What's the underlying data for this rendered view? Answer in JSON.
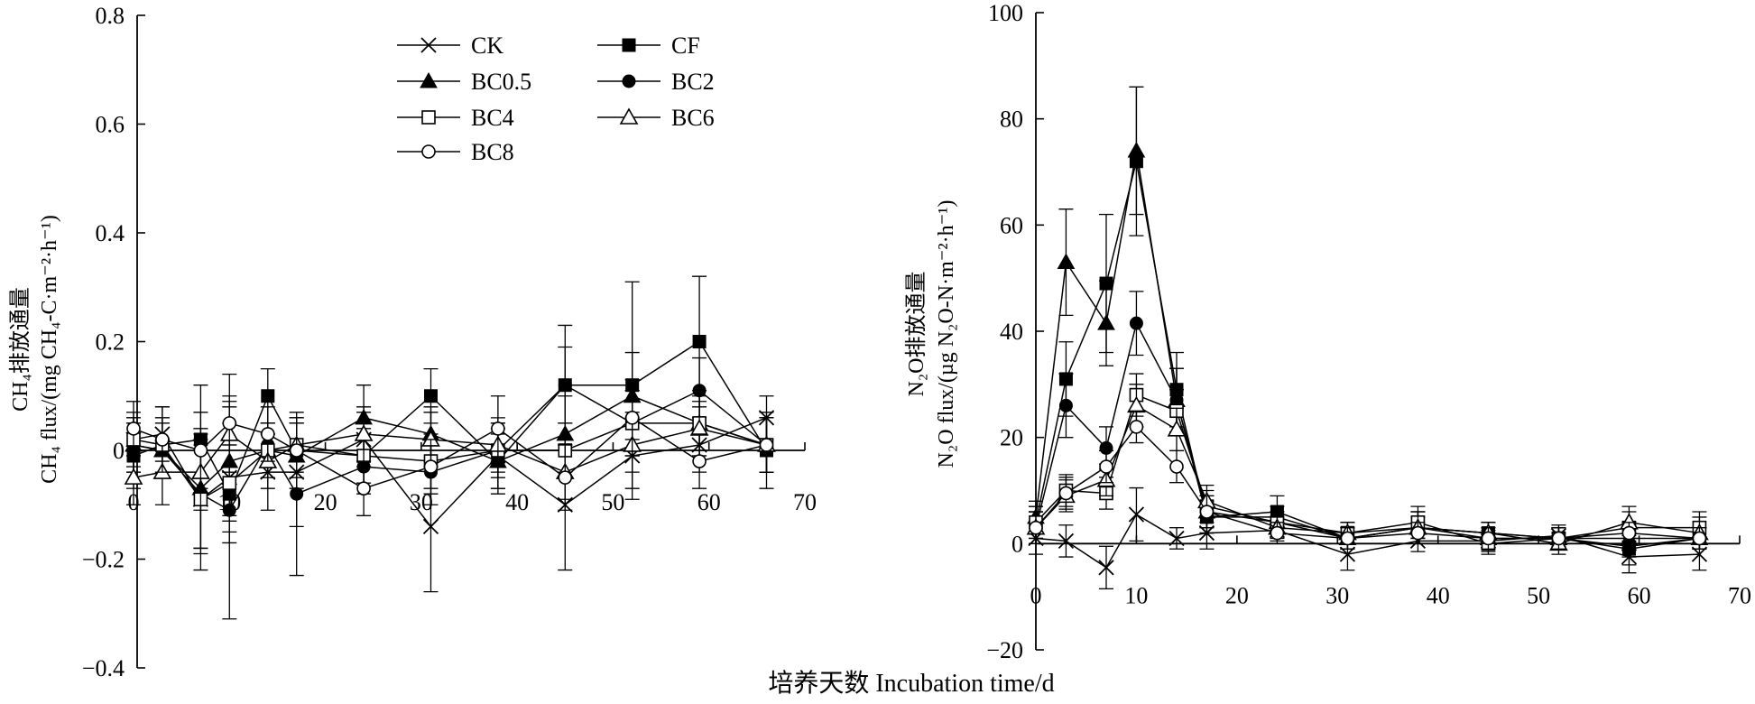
{
  "shared_xlabel": "培养天数 Incubation time/d",
  "chart_data": [
    {
      "type": "line",
      "title": "",
      "xlabel": "",
      "ylabel_cn": "CH₄排放通量",
      "ylabel_en": "CH₄ flux/(mg CH₄-C·m⁻²·h⁻¹)",
      "xlim": [
        0,
        70
      ],
      "ylim": [
        -0.4,
        0.8
      ],
      "xticks": [
        0,
        10,
        20,
        30,
        40,
        50,
        60,
        70
      ],
      "yticks": [
        -0.4,
        -0.2,
        0,
        0.2,
        0.4,
        0.6,
        0.8
      ],
      "xtick_labels": [
        "0",
        "10",
        "20",
        "30",
        "40",
        "50",
        "60",
        "70"
      ],
      "ytick_labels": [
        "−0.4",
        "−0.2",
        "0",
        "0.2",
        "0.4",
        "0.6",
        "0.8"
      ],
      "legend_position": "top-right",
      "x": [
        0,
        3,
        7,
        10,
        14,
        17,
        24,
        31,
        38,
        45,
        52,
        59,
        66
      ],
      "series": [
        {
          "name": "CK",
          "marker": "x",
          "values": [
            0.02,
            0.03,
            -0.09,
            -0.05,
            -0.04,
            -0.04,
            0.02,
            -0.14,
            -0.01,
            -0.1,
            -0.01,
            0.01,
            0.06
          ],
          "errors": [
            0.03,
            0.05,
            0.13,
            0.1,
            0.07,
            0.1,
            0.05,
            0.12,
            0.06,
            0.12,
            0.08,
            0.05,
            0.04
          ]
        },
        {
          "name": "CF",
          "marker": "filled-square",
          "values": [
            -0.01,
            0.01,
            0.02,
            -0.08,
            0.1,
            0.0,
            -0.01,
            0.1,
            -0.02,
            0.12,
            0.12,
            0.2,
            0.0
          ],
          "errors": [
            0.06,
            0.05,
            0.1,
            0.09,
            0.05,
            0.05,
            0.05,
            0.05,
            0.06,
            0.11,
            0.19,
            0.12,
            0.07
          ]
        },
        {
          "name": "BC0.5",
          "marker": "filled-triangle",
          "values": [
            0.01,
            0.0,
            -0.07,
            -0.02,
            0.0,
            -0.01,
            0.06,
            0.03,
            -0.02,
            0.03,
            0.1,
            0.05,
            0.01
          ],
          "errors": [
            0.05,
            0.05,
            0.11,
            0.1,
            0.05,
            0.06,
            0.06,
            0.05,
            0.05,
            0.07,
            0.08,
            0.06,
            0.05
          ]
        },
        {
          "name": "BC2",
          "marker": "filled-circle",
          "values": [
            0.01,
            0.0,
            -0.08,
            -0.11,
            0.01,
            -0.08,
            -0.03,
            -0.04,
            0.0,
            0.12,
            0.05,
            0.11,
            0.01
          ],
          "errors": [
            0.05,
            0.05,
            0.1,
            0.2,
            0.04,
            0.15,
            0.05,
            0.06,
            0.05,
            0.07,
            0.06,
            0.06,
            0.05
          ]
        },
        {
          "name": "BC4",
          "marker": "open-square",
          "values": [
            0.02,
            0.01,
            -0.09,
            -0.06,
            0.0,
            0.01,
            -0.01,
            -0.02,
            0.0,
            0.0,
            0.05,
            0.05,
            0.01
          ],
          "errors": [
            0.05,
            0.05,
            0.1,
            0.07,
            0.05,
            0.05,
            0.05,
            0.05,
            0.05,
            0.05,
            0.06,
            0.05,
            0.05
          ]
        },
        {
          "name": "BC6",
          "marker": "open-triangle",
          "values": [
            -0.05,
            -0.04,
            -0.04,
            0.03,
            -0.02,
            0.01,
            0.03,
            0.02,
            0.01,
            -0.04,
            0.01,
            0.04,
            0.01
          ],
          "errors": [
            0.05,
            0.06,
            0.07,
            0.07,
            0.05,
            0.05,
            0.05,
            0.05,
            0.05,
            0.05,
            0.05,
            0.05,
            0.05
          ]
        },
        {
          "name": "BC8",
          "marker": "open-circle",
          "values": [
            0.04,
            0.02,
            0.0,
            0.05,
            0.03,
            0.0,
            -0.07,
            -0.03,
            0.04,
            -0.05,
            0.06,
            -0.02,
            0.01
          ],
          "errors": [
            0.05,
            0.06,
            0.07,
            0.09,
            0.05,
            0.05,
            0.05,
            0.05,
            0.06,
            0.06,
            0.07,
            0.05,
            0.05
          ]
        }
      ]
    },
    {
      "type": "line",
      "title": "",
      "xlabel": "",
      "ylabel_cn": "N₂O排放通量",
      "ylabel_en": "N₂O flux/(µg N₂O-N·m⁻²·h⁻¹)",
      "xlim": [
        0,
        70
      ],
      "ylim": [
        -20,
        100
      ],
      "xticks": [
        0,
        10,
        20,
        30,
        40,
        50,
        60,
        70
      ],
      "yticks": [
        -20,
        0,
        20,
        40,
        60,
        80,
        100
      ],
      "xtick_labels": [
        "0",
        "10",
        "20",
        "30",
        "40",
        "50",
        "60",
        "70"
      ],
      "ytick_labels": [
        "−20",
        "0",
        "20",
        "40",
        "60",
        "80",
        "100"
      ],
      "x": [
        0,
        3,
        7,
        10,
        14,
        17,
        24,
        31,
        38,
        45,
        52,
        59,
        66
      ],
      "series": [
        {
          "name": "CK",
          "marker": "x",
          "values": [
            1,
            0.5,
            -4.5,
            5.5,
            1,
            2,
            2.5,
            -2,
            0.5,
            0.5,
            1.5,
            -2.5,
            -2
          ],
          "errors": [
            3,
            3,
            4,
            5,
            2,
            3,
            2,
            3,
            2,
            2,
            2,
            3,
            3
          ]
        },
        {
          "name": "CF",
          "marker": "filled-square",
          "values": [
            4,
            31,
            49,
            72,
            29,
            5,
            6,
            1,
            3,
            2,
            1,
            -1,
            1
          ],
          "errors": [
            3,
            7,
            13,
            14,
            7,
            3,
            3,
            2,
            3,
            2,
            2,
            3,
            2
          ]
        },
        {
          "name": "BC0.5",
          "marker": "filled-triangle",
          "values": [
            5,
            53,
            41.5,
            74,
            27,
            6,
            4,
            1,
            3,
            1,
            1,
            1,
            1
          ],
          "errors": [
            3,
            10,
            8,
            12,
            6,
            3,
            2,
            2,
            3,
            2,
            2,
            2,
            2
          ]
        },
        {
          "name": "BC2",
          "marker": "filled-circle",
          "values": [
            3,
            26,
            18,
            41.5,
            27,
            5,
            5,
            1,
            3,
            2,
            1,
            -0.5,
            1
          ],
          "errors": [
            3,
            6,
            4,
            6,
            6,
            3,
            2,
            2,
            2,
            2,
            2,
            2,
            2
          ]
        },
        {
          "name": "BC4",
          "marker": "open-square",
          "values": [
            4,
            10,
            9.5,
            28,
            25,
            7,
            4,
            2,
            4,
            0,
            1,
            3,
            3
          ],
          "errors": [
            3,
            3,
            3,
            4,
            4,
            3,
            2,
            2,
            3,
            2,
            2,
            3,
            3
          ]
        },
        {
          "name": "BC6",
          "marker": "open-triangle",
          "values": [
            3,
            9,
            12,
            26,
            21.5,
            8,
            3,
            2,
            3,
            2,
            0,
            4,
            2
          ],
          "errors": [
            3,
            3,
            3,
            4,
            4,
            3,
            2,
            2,
            3,
            2,
            2,
            3,
            3
          ]
        },
        {
          "name": "BC8",
          "marker": "open-circle",
          "values": [
            3,
            9.5,
            14.5,
            22,
            14.5,
            6,
            2,
            1,
            2,
            1,
            1,
            2,
            1
          ],
          "errors": [
            3,
            3,
            3,
            3,
            3,
            3,
            2,
            2,
            2,
            2,
            2,
            2,
            2
          ]
        }
      ]
    }
  ]
}
